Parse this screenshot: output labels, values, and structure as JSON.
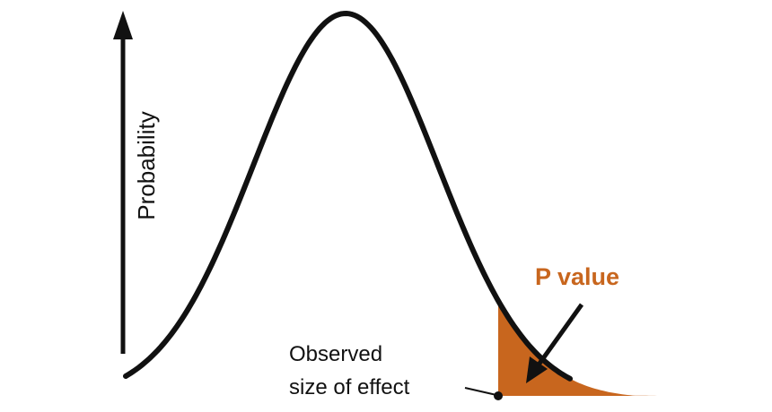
{
  "y_axis_label": "Probability",
  "annotation": "P value",
  "observed_label": [
    "Observed",
    "size of effect"
  ]
}
